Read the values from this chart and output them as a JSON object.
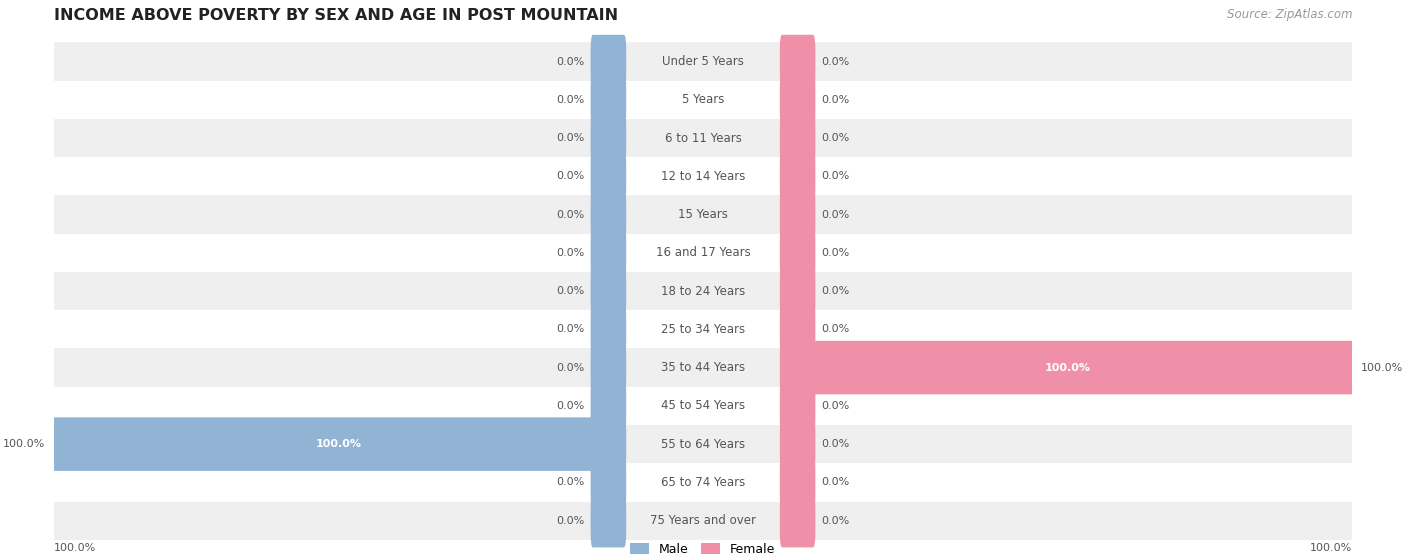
{
  "title": "INCOME ABOVE POVERTY BY SEX AND AGE IN POST MOUNTAIN",
  "source": "Source: ZipAtlas.com",
  "categories": [
    "Under 5 Years",
    "5 Years",
    "6 to 11 Years",
    "12 to 14 Years",
    "15 Years",
    "16 and 17 Years",
    "18 to 24 Years",
    "25 to 34 Years",
    "35 to 44 Years",
    "45 to 54 Years",
    "55 to 64 Years",
    "65 to 74 Years",
    "75 Years and over"
  ],
  "male_values": [
    0.0,
    0.0,
    0.0,
    0.0,
    0.0,
    0.0,
    0.0,
    0.0,
    0.0,
    0.0,
    100.0,
    0.0,
    0.0
  ],
  "female_values": [
    0.0,
    0.0,
    0.0,
    0.0,
    0.0,
    0.0,
    0.0,
    0.0,
    100.0,
    0.0,
    0.0,
    0.0,
    0.0
  ],
  "male_color": "#92b4d4",
  "female_color": "#f090a8",
  "male_label": "Male",
  "female_label": "Female",
  "row_bg_odd": "#efefef",
  "row_bg_even": "#ffffff",
  "label_color": "#555555",
  "title_color": "#222222",
  "source_color": "#999999",
  "max_value": 100.0,
  "title_fontsize": 11.5,
  "label_fontsize": 8.5,
  "value_fontsize": 8.0,
  "source_fontsize": 8.5
}
